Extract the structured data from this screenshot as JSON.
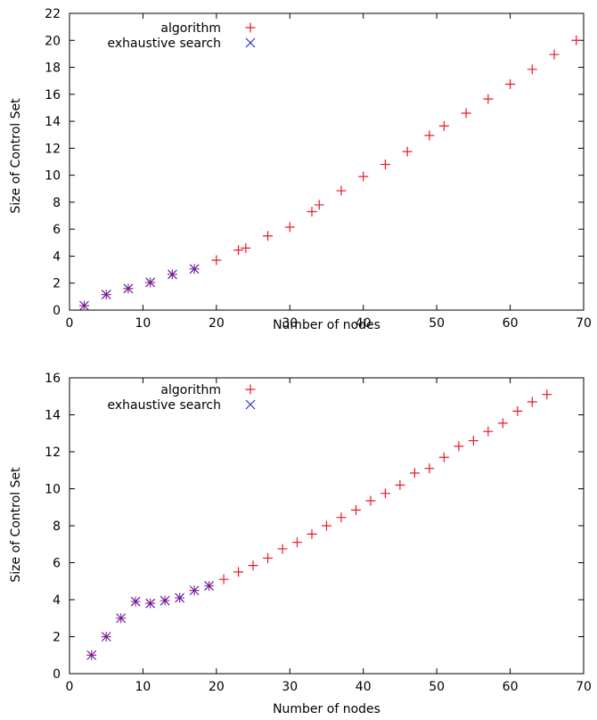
{
  "chart_data": [
    {
      "type": "scatter",
      "xlabel": "Number of nodes",
      "ylabel": "Size of Control Set",
      "xlim": [
        0,
        70
      ],
      "ylim": [
        0,
        22
      ],
      "xticks": [
        "0",
        "10",
        "20",
        "30",
        "40",
        "50",
        "60",
        "70"
      ],
      "yticks": [
        "0",
        "2",
        "4",
        "6",
        "8",
        "10",
        "12",
        "14",
        "16",
        "18",
        "20",
        "22"
      ],
      "legend_position": "top-left",
      "grid": false,
      "series": [
        {
          "name": "algorithm",
          "marker": "plus",
          "color": "#e8192c",
          "points": [
            [
              2,
              0.33
            ],
            [
              5,
              1.15
            ],
            [
              8,
              1.6
            ],
            [
              11,
              2.05
            ],
            [
              14,
              2.65
            ],
            [
              17,
              3.05
            ],
            [
              20,
              3.7
            ],
            [
              23,
              4.45
            ],
            [
              24,
              4.6
            ],
            [
              27,
              5.5
            ],
            [
              30,
              6.15
            ],
            [
              33,
              7.3
            ],
            [
              34,
              7.8
            ],
            [
              37,
              8.85
            ],
            [
              40,
              9.9
            ],
            [
              43,
              10.8
            ],
            [
              46,
              11.75
            ],
            [
              49,
              12.95
            ],
            [
              51,
              13.65
            ],
            [
              54,
              14.6
            ],
            [
              57,
              15.65
            ],
            [
              60,
              16.75
            ],
            [
              63,
              17.85
            ],
            [
              66,
              18.95
            ],
            [
              69,
              20.0
            ]
          ]
        },
        {
          "name": "exhaustive search",
          "marker": "cross",
          "color": "#2a2ae6",
          "points": [
            [
              2,
              0.33
            ],
            [
              5,
              1.15
            ],
            [
              8,
              1.6
            ],
            [
              11,
              2.05
            ],
            [
              14,
              2.65
            ],
            [
              17,
              3.05
            ]
          ]
        }
      ]
    },
    {
      "type": "scatter",
      "xlabel": "Number of nodes",
      "ylabel": "Size of Control Set",
      "xlim": [
        0,
        70
      ],
      "ylim": [
        0,
        16
      ],
      "xticks": [
        "0",
        "10",
        "20",
        "30",
        "40",
        "50",
        "60",
        "70"
      ],
      "yticks": [
        "0",
        "2",
        "4",
        "6",
        "8",
        "10",
        "12",
        "14",
        "16"
      ],
      "legend_position": "top-left",
      "grid": false,
      "series": [
        {
          "name": "algorithm",
          "marker": "plus",
          "color": "#e8192c",
          "points": [
            [
              3,
              1.0
            ],
            [
              5,
              2.0
            ],
            [
              7,
              3.0
            ],
            [
              9,
              3.9
            ],
            [
              11,
              3.8
            ],
            [
              13,
              3.95
            ],
            [
              15,
              4.1
            ],
            [
              17,
              4.5
            ],
            [
              19,
              4.75
            ],
            [
              21,
              5.1
            ],
            [
              23,
              5.5
            ],
            [
              25,
              5.85
            ],
            [
              27,
              6.25
            ],
            [
              29,
              6.75
            ],
            [
              31,
              7.1
            ],
            [
              33,
              7.55
            ],
            [
              35,
              8.0
            ],
            [
              37,
              8.45
            ],
            [
              39,
              8.85
            ],
            [
              41,
              9.35
            ],
            [
              43,
              9.75
            ],
            [
              45,
              10.2
            ],
            [
              47,
              10.85
            ],
            [
              49,
              11.1
            ],
            [
              51,
              11.7
            ],
            [
              53,
              12.3
            ],
            [
              55,
              12.6
            ],
            [
              57,
              13.1
            ],
            [
              59,
              13.55
            ],
            [
              61,
              14.2
            ],
            [
              63,
              14.7
            ],
            [
              65,
              15.1
            ]
          ]
        },
        {
          "name": "exhaustive search",
          "marker": "cross",
          "color": "#2a2ae6",
          "points": [
            [
              3,
              1.0
            ],
            [
              5,
              2.0
            ],
            [
              7,
              3.0
            ],
            [
              9,
              3.9
            ],
            [
              11,
              3.8
            ],
            [
              13,
              3.95
            ],
            [
              15,
              4.1
            ],
            [
              17,
              4.5
            ],
            [
              19,
              4.75
            ]
          ]
        }
      ]
    }
  ]
}
